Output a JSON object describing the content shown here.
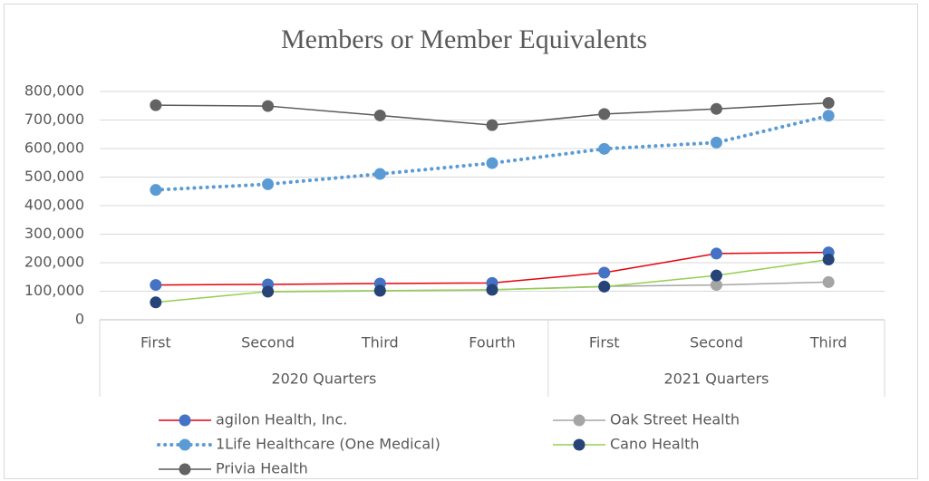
{
  "chart_data": {
    "type": "line",
    "title": "Members or Member Equivalents",
    "category_groups": [
      {
        "name": "2020 Quarters",
        "categories": [
          "First",
          "Second",
          "Third",
          "Fourth"
        ]
      },
      {
        "name": "2021 Quarters",
        "categories": [
          "First",
          "Second",
          "Third"
        ]
      }
    ],
    "ylim": [
      0,
      800000
    ],
    "yticks": [
      0,
      {
        "value": 100000,
        "label": "100,000"
      },
      {
        "value": 200000,
        "label": "200,000"
      },
      {
        "value": 300000,
        "label": "300,000"
      },
      {
        "value": 400000,
        "label": "400,000"
      },
      {
        "value": 500000,
        "label": "500,000"
      },
      {
        "value": 600000,
        "label": "600,000"
      },
      {
        "value": 700000,
        "label": "700,000"
      },
      {
        "value": 800000,
        "label": "800,000"
      }
    ],
    "grid": true,
    "legend": "bottom",
    "series": [
      {
        "name": "agilon Health, Inc.",
        "color": "#e8000b",
        "marker_color": "#4472c4",
        "dash": "solid",
        "values": [
          122000,
          124000,
          127000,
          129000,
          165000,
          232000,
          236000
        ]
      },
      {
        "name": "Oak Street Health",
        "color": "#a5a5a5",
        "marker_color": "#a5a5a5",
        "dash": "solid",
        "values": [
          null,
          98000,
          101000,
          105000,
          117000,
          122000,
          132000
        ]
      },
      {
        "name": "1Life Healthcare (One Medical)",
        "color": "#5b9bd5",
        "marker_color": "#5b9bd5",
        "dash": "dot",
        "values": [
          455000,
          475000,
          511000,
          549000,
          599000,
          621000,
          715000
        ]
      },
      {
        "name": "Cano Health",
        "color": "#92d050",
        "marker_color": "#264478",
        "dash": "solid",
        "values": [
          61000,
          99000,
          102000,
          105000,
          116000,
          155000,
          211000
        ]
      },
      {
        "name": "Privia Health",
        "color": "#595959",
        "marker_color": "#636363",
        "dash": "solid",
        "values": [
          752000,
          749000,
          716000,
          682000,
          721000,
          739000,
          760000
        ]
      }
    ]
  }
}
